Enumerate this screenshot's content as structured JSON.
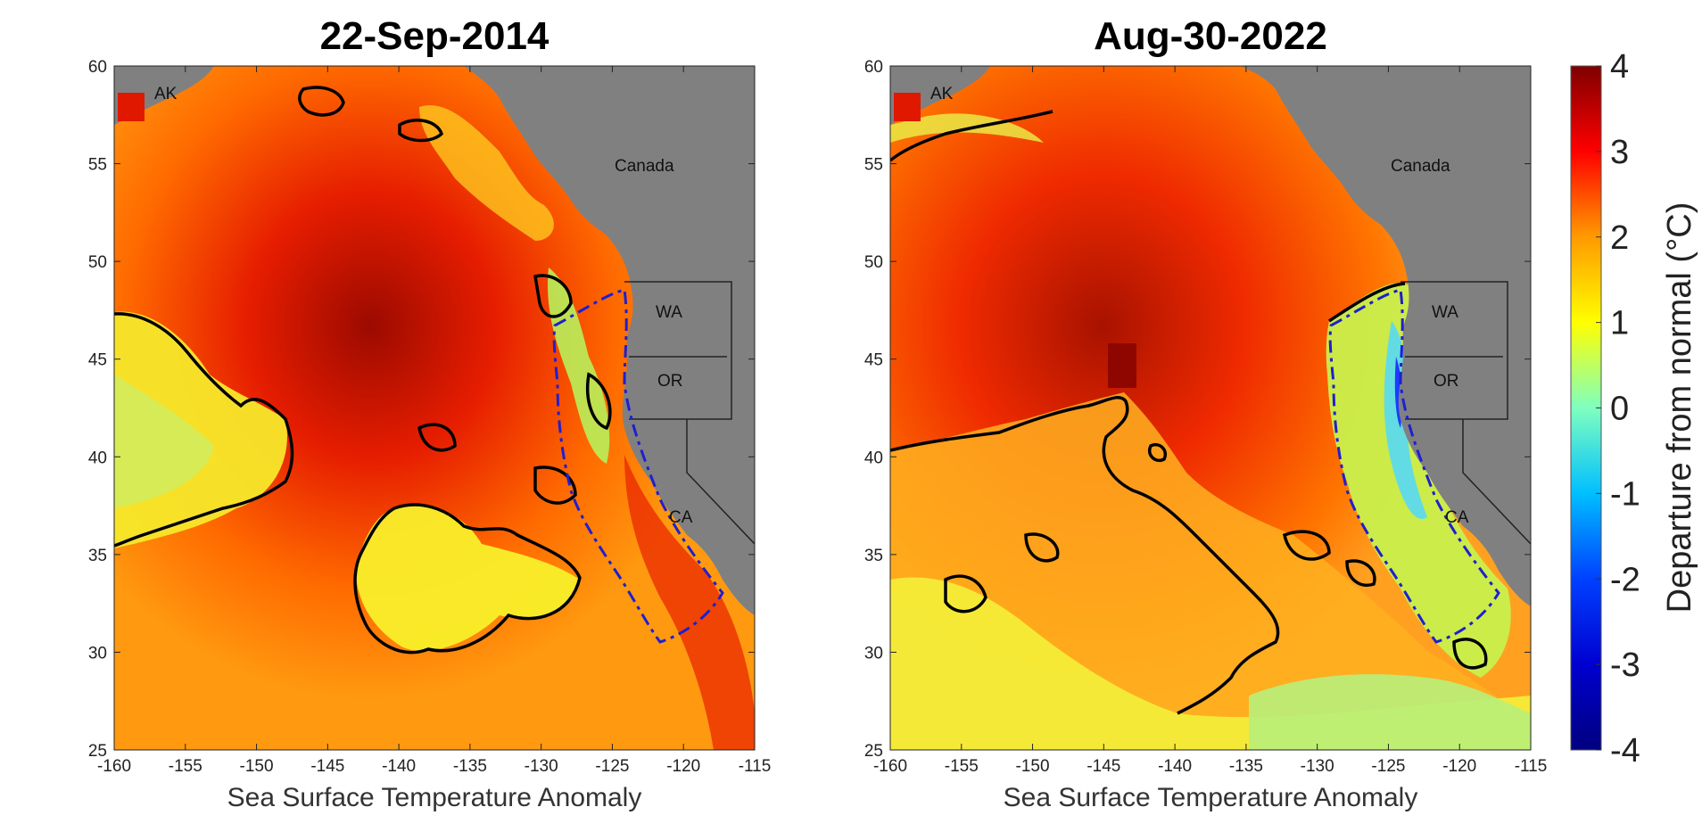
{
  "figure": {
    "panels": [
      {
        "id": "p2014",
        "title": "22-Sep-2014",
        "xlabel": "Sea Surface Temperature Anomaly",
        "xticks": [
          "-160",
          "-155",
          "-150",
          "-145",
          "-140",
          "-135",
          "-130",
          "-125",
          "-120",
          "-115"
        ],
        "yticks": [
          "60",
          "55",
          "50",
          "45",
          "40",
          "35",
          "30",
          "25"
        ],
        "labels": {
          "ak": "AK",
          "canada": "Canada",
          "wa": "WA",
          "or": "OR",
          "ca": "CA"
        }
      },
      {
        "id": "p2022",
        "title": "Aug-30-2022",
        "xlabel": "Sea Surface Temperature Anomaly",
        "xticks": [
          "-160",
          "-155",
          "-150",
          "-145",
          "-140",
          "-135",
          "-130",
          "-125",
          "-120",
          "-115"
        ],
        "yticks": [
          "60",
          "55",
          "50",
          "45",
          "40",
          "35",
          "30",
          "25"
        ],
        "labels": {
          "ak": "AK",
          "canada": "Canada",
          "wa": "WA",
          "or": "OR",
          "ca": "CA"
        }
      }
    ],
    "colorbar": {
      "label": "Departure from normal (°C)",
      "ticks": [
        "4",
        "3",
        "2",
        "1",
        "0",
        "-1",
        "-2",
        "-3",
        "-4"
      ],
      "colors": [
        "#7f0000",
        "#ff0000",
        "#ff9a00",
        "#ffff00",
        "#7fffbf",
        "#00bfff",
        "#0040ff",
        "#00007f"
      ]
    },
    "land_color": "#808080"
  }
}
